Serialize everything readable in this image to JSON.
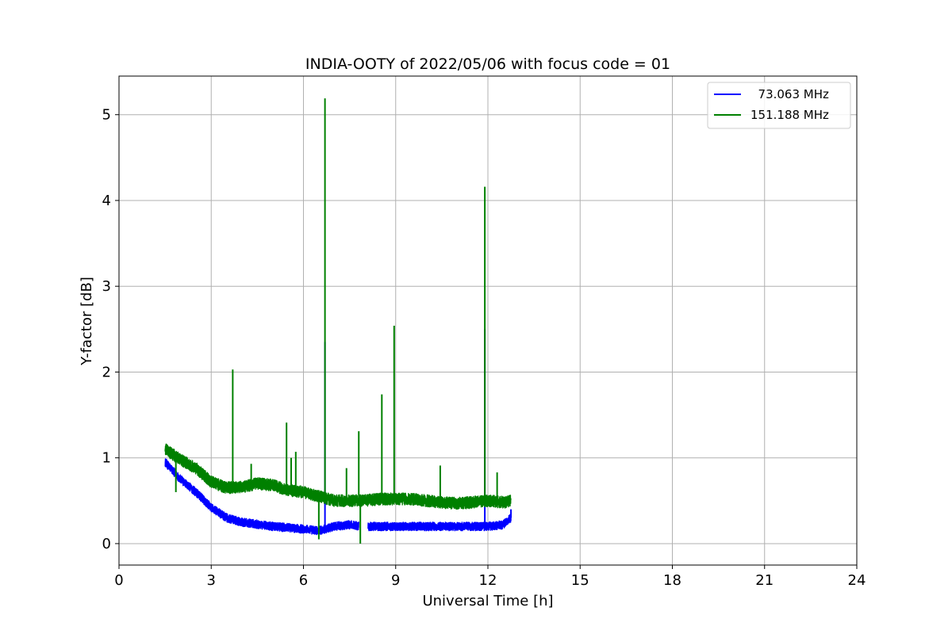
{
  "chart_data": {
    "type": "line",
    "title": "INDIA-OOTY of 2022/05/06 with focus code = 01",
    "xlabel": "Universal Time [h]",
    "ylabel": "Y-factor [dB]",
    "xlim": [
      0,
      24
    ],
    "ylim": [
      -0.25,
      5.45
    ],
    "xticks": [
      0,
      3,
      6,
      9,
      12,
      15,
      18,
      21,
      24
    ],
    "xtick_labels": [
      "0",
      "3",
      "6",
      "9",
      "12",
      "15",
      "18",
      "21",
      "24"
    ],
    "yticks": [
      0,
      1,
      2,
      3,
      4,
      5
    ],
    "ytick_labels": [
      "0",
      "1",
      "2",
      "3",
      "4",
      "5"
    ],
    "grid": true,
    "legend_position": "top-right",
    "series": [
      {
        "name": "  73.063 MHz",
        "color": "#0000ff",
        "baseline": [
          [
            1.5,
            0.95
          ],
          [
            2.0,
            0.75
          ],
          [
            2.5,
            0.6
          ],
          [
            3.0,
            0.42
          ],
          [
            3.5,
            0.3
          ],
          [
            4.0,
            0.25
          ],
          [
            5.0,
            0.2
          ],
          [
            6.0,
            0.17
          ],
          [
            6.5,
            0.15
          ],
          [
            7.0,
            0.2
          ],
          [
            7.5,
            0.22
          ],
          [
            8.0,
            0.2
          ],
          [
            8.5,
            0.2
          ],
          [
            9.0,
            0.2
          ],
          [
            10.0,
            0.2
          ],
          [
            11.0,
            0.2
          ],
          [
            12.0,
            0.2
          ],
          [
            12.5,
            0.22
          ],
          [
            12.75,
            0.3
          ]
        ],
        "noise": 0.05,
        "gaps": [
          [
            7.8,
            8.1
          ]
        ],
        "spikes": [
          [
            6.7,
            2.35
          ],
          [
            11.9,
            2.5
          ],
          [
            12.75,
            0.4
          ]
        ]
      },
      {
        "name": "151.188 MHz",
        "color": "#008000",
        "baseline": [
          [
            1.5,
            1.1
          ],
          [
            2.0,
            0.98
          ],
          [
            2.5,
            0.88
          ],
          [
            3.0,
            0.72
          ],
          [
            3.5,
            0.65
          ],
          [
            4.0,
            0.66
          ],
          [
            4.5,
            0.7
          ],
          [
            5.0,
            0.68
          ],
          [
            5.5,
            0.62
          ],
          [
            6.0,
            0.6
          ],
          [
            6.5,
            0.55
          ],
          [
            7.0,
            0.5
          ],
          [
            7.5,
            0.5
          ],
          [
            8.0,
            0.5
          ],
          [
            8.5,
            0.52
          ],
          [
            9.0,
            0.52
          ],
          [
            9.5,
            0.52
          ],
          [
            10.0,
            0.5
          ],
          [
            10.5,
            0.48
          ],
          [
            11.0,
            0.47
          ],
          [
            11.5,
            0.48
          ],
          [
            12.0,
            0.5
          ],
          [
            12.5,
            0.48
          ],
          [
            12.75,
            0.5
          ]
        ],
        "noise": 0.07,
        "gaps": [],
        "spikes": [
          [
            1.85,
            0.6
          ],
          [
            3.7,
            2.03
          ],
          [
            4.3,
            0.93
          ],
          [
            5.45,
            1.41
          ],
          [
            5.6,
            1.0
          ],
          [
            5.75,
            1.07
          ],
          [
            6.7,
            5.19
          ],
          [
            6.5,
            0.05
          ],
          [
            7.4,
            0.88
          ],
          [
            7.8,
            1.31
          ],
          [
            7.85,
            0.0
          ],
          [
            8.55,
            1.74
          ],
          [
            8.95,
            2.54
          ],
          [
            10.45,
            0.91
          ],
          [
            11.9,
            4.16
          ],
          [
            12.3,
            0.83
          ]
        ]
      }
    ]
  }
}
